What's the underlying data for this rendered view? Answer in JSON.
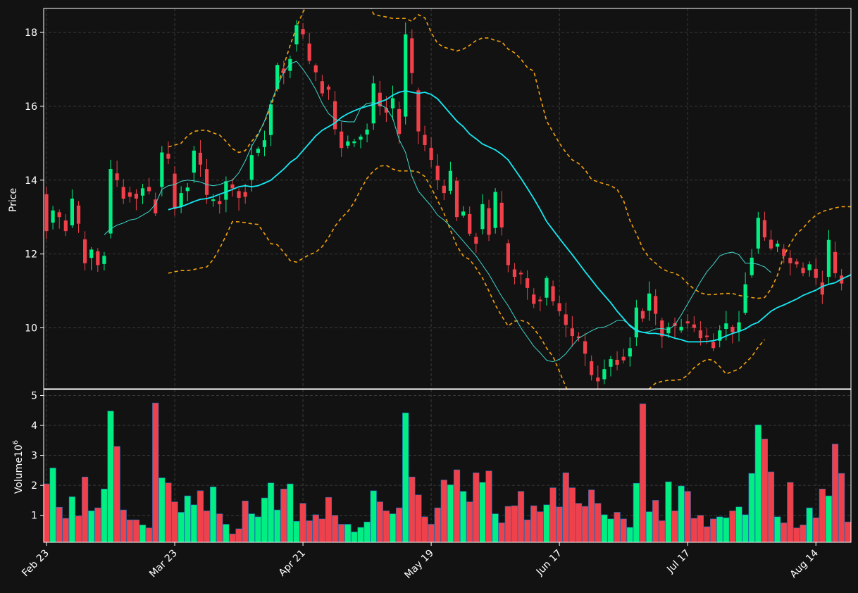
{
  "colors": {
    "background": "#121212",
    "up": "#00ee82",
    "down": "#f0414b",
    "ma_fast": "#3fd6cc",
    "ma_slow": "#15e8f2",
    "band": "#f2a20c",
    "grid": "#3a3a3a",
    "frame": "#ffffff"
  },
  "chart_data": [
    {
      "type": "candlestick",
      "panel": "price",
      "ylabel": "Price",
      "ylim": [
        8.35,
        18.65
      ],
      "yticks": [
        "10",
        "12",
        "14",
        "16",
        "18"
      ],
      "grid": true,
      "x_tick_labels": [
        "Feb 23",
        "Mar 23",
        "Apr 21",
        "May 19",
        "Jun 17",
        "Jul 17",
        "Aug 14"
      ],
      "x_tick_index": [
        0,
        20,
        40,
        60,
        80,
        100,
        120
      ],
      "close": [
        12.62,
        13.18,
        13.0,
        12.62,
        13.5,
        12.82,
        11.75,
        12.12,
        11.7,
        11.95,
        14.3,
        14.0,
        13.5,
        13.55,
        13.5,
        13.78,
        13.7,
        13.1,
        14.75,
        14.58,
        13.22,
        13.65,
        13.8,
        14.8,
        14.42,
        13.6,
        13.48,
        13.35,
        13.97,
        13.78,
        13.52,
        13.55,
        14.68,
        14.85,
        15.08,
        16.05,
        17.12,
        16.9,
        17.28,
        18.2,
        17.95,
        17.23,
        16.92,
        16.35,
        16.45,
        15.38,
        14.87,
        15.05,
        15.05,
        15.18,
        15.37,
        16.62,
        16.0,
        15.83,
        16.22,
        15.25,
        17.95,
        16.9,
        15.32,
        14.95,
        14.55,
        14.0,
        13.65,
        14.25,
        13.0,
        13.15,
        12.55,
        12.28,
        13.35,
        12.52,
        13.68,
        12.72,
        11.7,
        11.38,
        11.45,
        11.08,
        10.65,
        10.72,
        11.35,
        10.72,
        10.45,
        10.08,
        9.78,
        9.72,
        9.3,
        8.72,
        8.55,
        8.88,
        9.15,
        9.0,
        9.12,
        9.45,
        10.55,
        10.25,
        10.93,
        10.38,
        9.77,
        10.02,
        10.05,
        10.03,
        10.12,
        10.0,
        9.72,
        9.75,
        9.45,
        9.93,
        10.12,
        9.88,
        10.15,
        11.18,
        11.9,
        12.98,
        12.45,
        12.15,
        12.28,
        11.95,
        11.75,
        11.72,
        11.48,
        11.72,
        11.35,
        10.9,
        12.38,
        11.48,
        11.2
      ],
      "sma_fast_start": 9,
      "sma_fast": [
        12.52,
        12.68,
        12.78,
        12.84,
        12.92,
        12.95,
        13.05,
        13.15,
        13.35,
        13.75,
        13.85,
        13.88,
        13.97,
        14.0,
        13.98,
        13.95,
        13.88,
        13.85,
        13.88,
        13.95,
        14.0,
        14.2,
        14.52,
        14.92,
        15.22,
        15.6,
        16.08,
        16.55,
        16.92,
        17.15,
        17.22,
        17.0,
        16.75,
        16.45,
        16.08,
        15.8,
        15.65,
        15.6,
        15.58,
        15.58,
        15.95,
        16.08,
        16.1,
        16.05,
        15.95,
        15.68,
        15.1,
        14.75,
        14.1,
        13.7,
        13.5,
        13.3,
        13.05,
        12.92,
        12.75,
        12.55,
        12.35,
        12.15,
        11.95,
        11.7,
        11.45,
        11.15,
        10.85,
        10.6,
        10.3,
        10.0,
        9.75,
        9.5,
        9.32,
        9.12,
        9.08,
        9.15,
        9.3,
        9.52,
        9.72,
        9.82,
        9.92,
        10.0,
        10.02,
        10.1,
        10.2,
        10.2,
        10.08,
        9.95,
        9.87,
        9.9,
        9.97,
        9.98,
        9.95,
        10.08,
        10.35,
        10.65,
        10.95,
        11.25,
        11.52,
        11.72,
        11.95,
        12.02,
        12.05,
        11.98,
        11.75,
        11.75,
        11.72,
        11.65,
        11.5
      ],
      "sma_slow_start": 19,
      "sma_slow": [
        13.2,
        13.25,
        13.28,
        13.35,
        13.42,
        13.48,
        13.5,
        13.55,
        13.62,
        13.68,
        13.75,
        13.82,
        13.85,
        13.82,
        13.85,
        13.92,
        14.0,
        14.15,
        14.3,
        14.48,
        14.6,
        14.8,
        15.0,
        15.2,
        15.35,
        15.45,
        15.55,
        15.7,
        15.8,
        15.88,
        15.95,
        16.0,
        16.05,
        16.12,
        16.18,
        16.3,
        16.38,
        16.42,
        16.38,
        16.35,
        16.38,
        16.32,
        16.2,
        16.0,
        15.8,
        15.6,
        15.45,
        15.25,
        15.12,
        14.98,
        14.9,
        14.82,
        14.7,
        14.55,
        14.3,
        14.05,
        13.78,
        13.5,
        13.2,
        12.88,
        12.65,
        12.42,
        12.2,
        11.98,
        11.75,
        11.52,
        11.3,
        11.08,
        10.88,
        10.68,
        10.45,
        10.25,
        10.05,
        9.92,
        9.88,
        9.85,
        9.85,
        9.82,
        9.78,
        9.72,
        9.68,
        9.62,
        9.62,
        9.62,
        9.63,
        9.65,
        9.7,
        9.78,
        9.85,
        9.9,
        9.97,
        10.08,
        10.15,
        10.3,
        10.45,
        10.55,
        10.62,
        10.7,
        10.78,
        10.88,
        10.95,
        11.02,
        11.12,
        11.18,
        11.22,
        11.32,
        11.4,
        11.48
      ],
      "band_upper": [
        14.9,
        14.95,
        15.0,
        15.2,
        15.32,
        15.35,
        15.35,
        15.28,
        15.22,
        15.05,
        14.85,
        14.75,
        14.8,
        15.05,
        15.25,
        15.58,
        16.0,
        16.52,
        17.1,
        17.65,
        18.15,
        18.55,
        18.85,
        19.1,
        19.3,
        19.5,
        19.6,
        19.55,
        19.45,
        19.3,
        19.15,
        18.95,
        18.5,
        18.45,
        18.42,
        18.38,
        18.38,
        18.38,
        18.3,
        18.48,
        18.4,
        18.0,
        17.7,
        17.6,
        17.55,
        17.5,
        17.55,
        17.65,
        17.78,
        17.85,
        17.85,
        17.78,
        17.75,
        17.55,
        17.45,
        17.28,
        17.05,
        16.95,
        16.25,
        15.6,
        15.3,
        15.0,
        14.75,
        14.55,
        14.45,
        14.28,
        14.02,
        13.95,
        13.9,
        13.85,
        13.75,
        13.45,
        12.9,
        12.55,
        12.15,
        11.9,
        11.75,
        11.6,
        11.52,
        11.48,
        11.38,
        11.2,
        11.05,
        10.95,
        10.9,
        10.9,
        10.92,
        10.93,
        10.93,
        10.88,
        10.85,
        10.82,
        10.8,
        10.82,
        11.05,
        11.42,
        11.95,
        12.28,
        12.55,
        12.7,
        12.9,
        13.05,
        13.15,
        13.2,
        13.25,
        13.28,
        13.28,
        13.28,
        13.35,
        13.3,
        13.2
      ],
      "band_lower": [
        11.48,
        11.52,
        11.55,
        11.55,
        11.58,
        11.62,
        11.65,
        11.85,
        12.15,
        12.5,
        12.88,
        12.87,
        12.85,
        12.82,
        12.8,
        12.55,
        12.28,
        12.25,
        12.05,
        11.82,
        11.78,
        11.88,
        11.98,
        12.05,
        12.2,
        12.45,
        12.75,
        12.98,
        13.15,
        13.4,
        13.75,
        14.05,
        14.25,
        14.38,
        14.4,
        14.3,
        14.25,
        14.25,
        14.25,
        14.22,
        14.1,
        13.8,
        13.45,
        13.1,
        12.65,
        12.22,
        11.95,
        11.85,
        11.62,
        11.35,
        11.0,
        10.62,
        10.32,
        10.05,
        10.18,
        10.2,
        10.15,
        9.98,
        9.75,
        9.45,
        9.22,
        8.82,
        8.4,
        8.05,
        7.75,
        7.5,
        7.3,
        7.15,
        7.05,
        6.98,
        6.95,
        7.05,
        7.22,
        7.58,
        7.95,
        8.35,
        8.5,
        8.55,
        8.58,
        8.58,
        8.6,
        8.72,
        8.92,
        9.05,
        9.15,
        9.12,
        8.95,
        8.75,
        8.82,
        8.88,
        9.05,
        9.22,
        9.48,
        9.68
      ]
    },
    {
      "type": "bar",
      "panel": "volume",
      "ylabel": "Volume",
      "ylabel_exponent": "6",
      "ylim": [
        0.1,
        5.2
      ],
      "yticks": [
        "1",
        "2",
        "3",
        "4",
        "5"
      ],
      "grid": true,
      "values": [
        2.05,
        2.58,
        1.27,
        0.9,
        1.62,
        0.98,
        2.28,
        1.15,
        1.25,
        1.88,
        4.48,
        3.3,
        1.18,
        0.85,
        0.85,
        0.68,
        0.58,
        4.75,
        2.25,
        2.08,
        1.45,
        1.1,
        1.65,
        1.35,
        1.82,
        1.15,
        1.95,
        1.05,
        0.7,
        0.38,
        0.55,
        1.48,
        1.05,
        0.95,
        1.58,
        2.08,
        1.18,
        1.88,
        2.05,
        0.8,
        1.4,
        0.82,
        1.02,
        0.88,
        1.6,
        1.0,
        0.7,
        0.7,
        0.45,
        0.6,
        0.78,
        1.82,
        1.45,
        1.15,
        1.05,
        1.25,
        4.42,
        2.28,
        1.68,
        0.95,
        0.7,
        1.25,
        2.18,
        2.02,
        2.52,
        1.8,
        1.45,
        2.42,
        2.1,
        2.48,
        1.05,
        0.75,
        1.3,
        1.32,
        1.8,
        0.85,
        1.32,
        1.12,
        1.35,
        1.92,
        1.28,
        2.42,
        1.92,
        1.4,
        1.3,
        1.85,
        1.4,
        1.02,
        0.88,
        1.1,
        0.88,
        0.6,
        2.07,
        4.72,
        1.12,
        1.5,
        0.82,
        2.12,
        1.15,
        1.98,
        1.8,
        0.9,
        1.0,
        0.62,
        0.88,
        0.95,
        0.92,
        1.15,
        1.28,
        1.02,
        2.4,
        4.02,
        3.55,
        2.45,
        0.95,
        0.75,
        2.1,
        0.58,
        0.68,
        1.25,
        0.92,
        1.88,
        1.65,
        3.38,
        2.4,
        0.78
      ]
    }
  ]
}
